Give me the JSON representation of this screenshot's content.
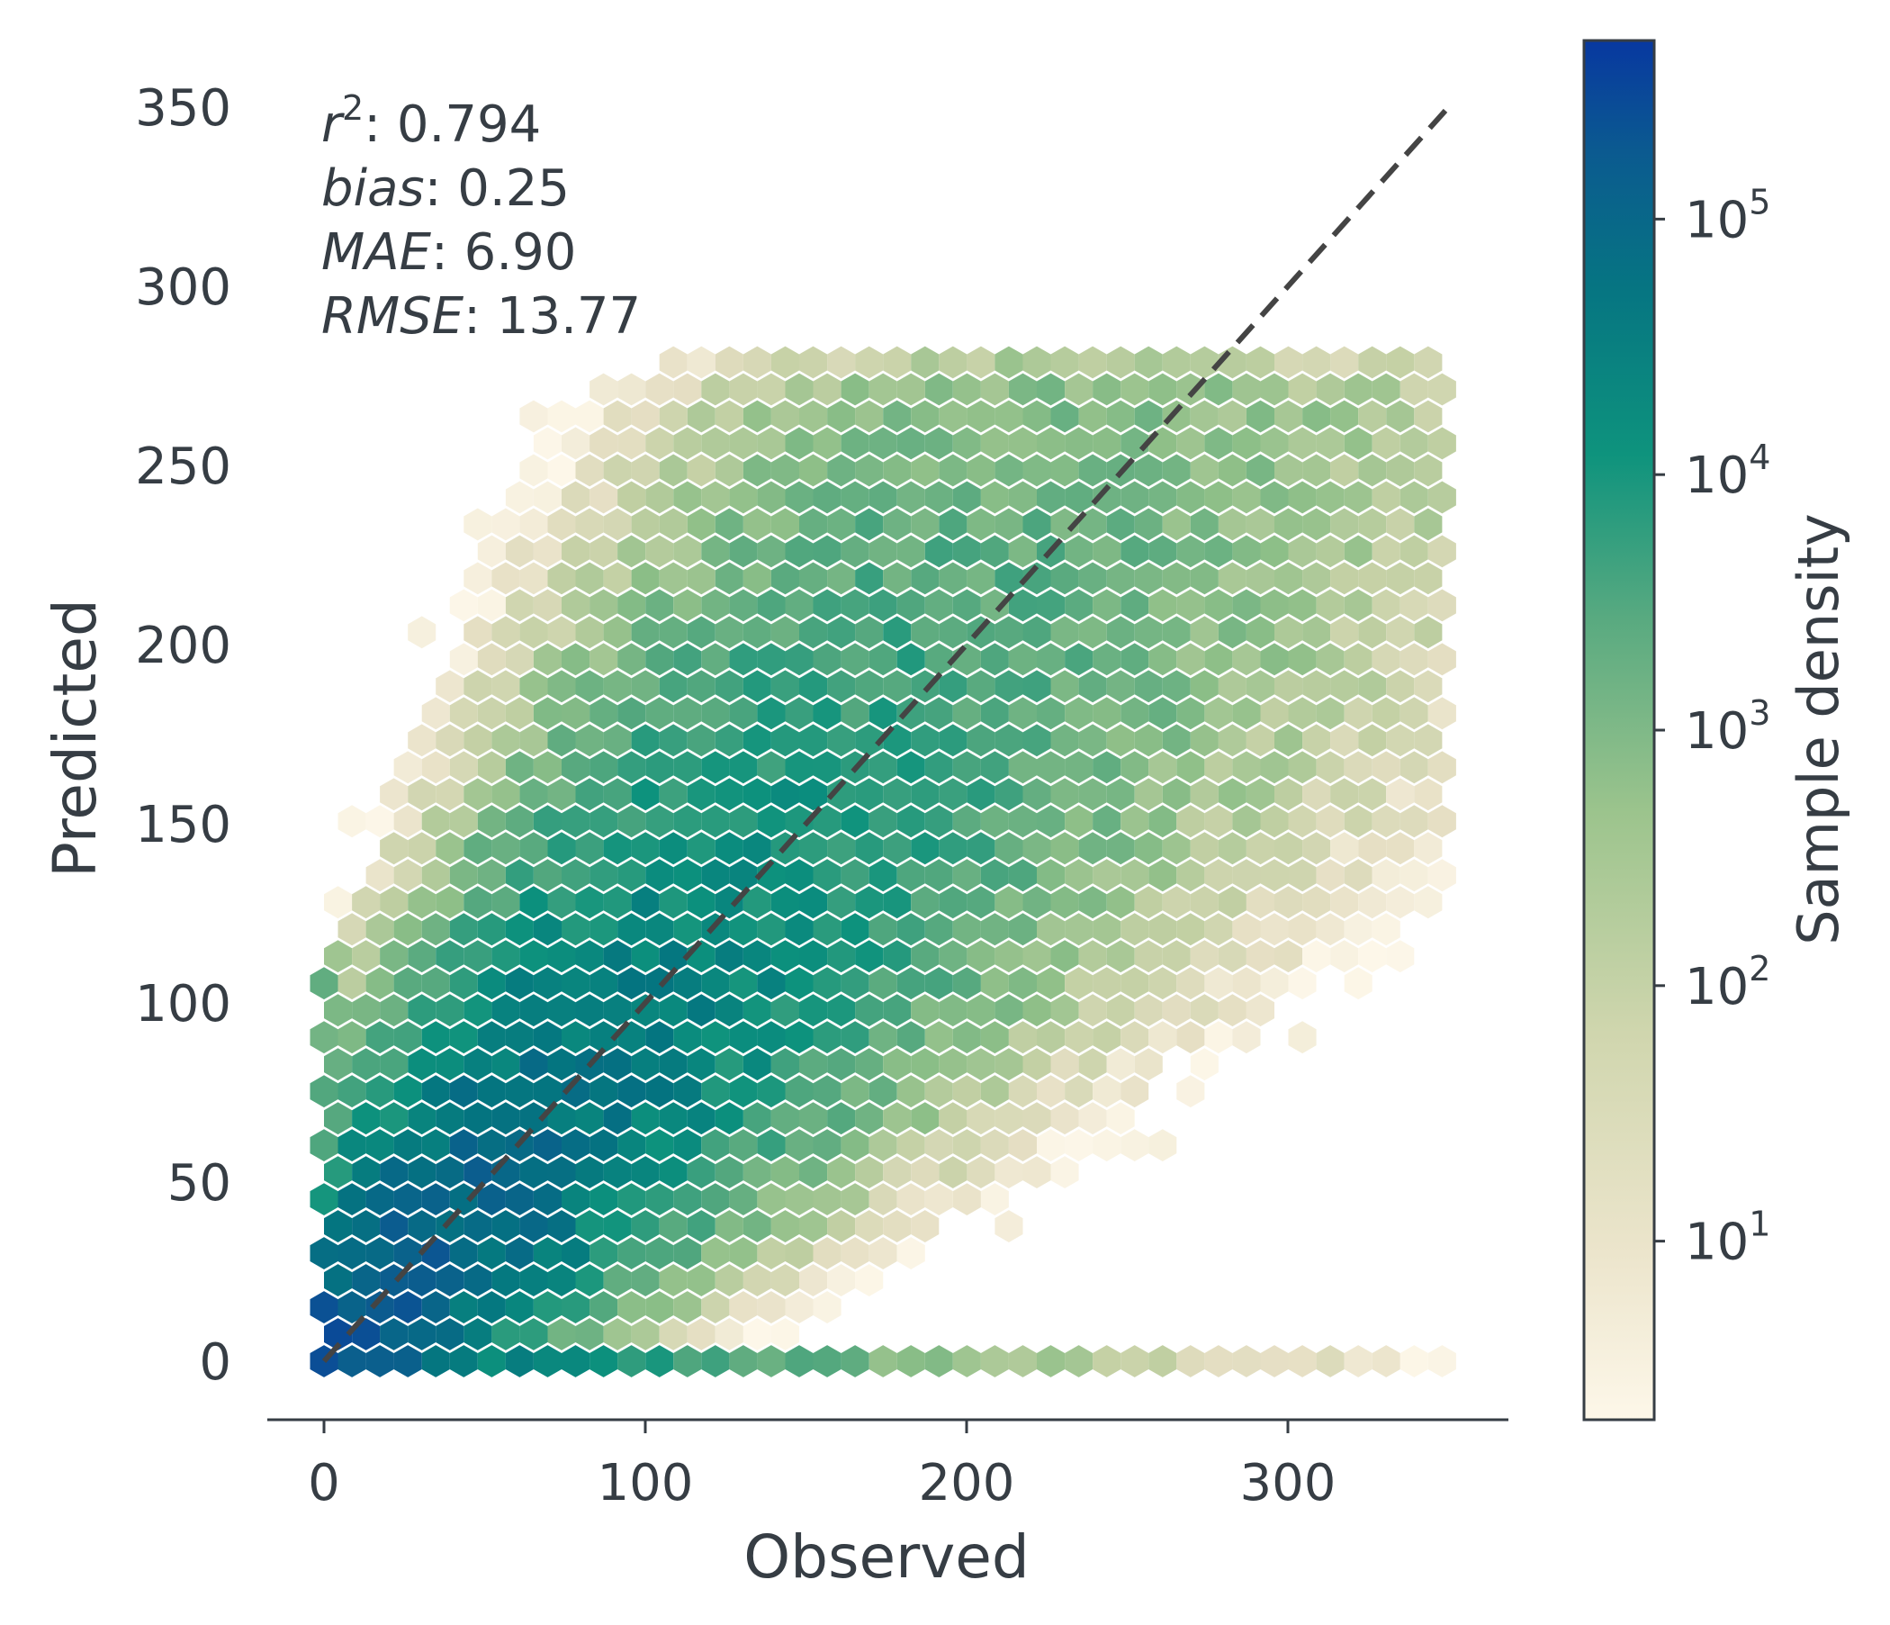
{
  "chart_data": {
    "type": "hexbin",
    "xlabel": "Observed",
    "ylabel": "Predicted",
    "xlim": [
      -18,
      370
    ],
    "ylim": [
      -16,
      355
    ],
    "xticks": [
      0,
      100,
      200,
      300
    ],
    "yticks": [
      0,
      50,
      100,
      150,
      200,
      250,
      300,
      350
    ],
    "reference_line": {
      "style": "dashed",
      "from": [
        0,
        0
      ],
      "to": [
        350,
        350
      ],
      "color": "#444444"
    },
    "stats": [
      {
        "label": "r",
        "sup": "2",
        "value": ": 0.794"
      },
      {
        "label": "bias",
        "sup": "",
        "value": ": 0.25"
      },
      {
        "label": "MAE",
        "sup": "",
        "value": ": 6.90"
      },
      {
        "label": "RMSE",
        "sup": "",
        "value": ": 13.77"
      }
    ],
    "colorbar": {
      "label": "Sample density",
      "scale": "log",
      "range": [
        2,
        500000
      ],
      "ticks": [
        {
          "value": 10,
          "base": "10",
          "exp": "1"
        },
        {
          "value": 100,
          "base": "10",
          "exp": "2"
        },
        {
          "value": 1000,
          "base": "10",
          "exp": "3"
        },
        {
          "value": 10000,
          "base": "10",
          "exp": "4"
        },
        {
          "value": 100000,
          "base": "10",
          "exp": "5"
        }
      ],
      "colormap": [
        "#fdf7e9",
        "#e6dfc4",
        "#c3d0a4",
        "#8ebf88",
        "#52a77e",
        "#0d927d",
        "#047480",
        "#0c5a90",
        "#0838a0"
      ]
    },
    "density_model": {
      "description": "hexbin counts approximated from the plotted density field",
      "max_x": 350,
      "max_y": 285
    }
  },
  "colors": {
    "axis": "#363d44",
    "text": "#363d44",
    "background": "#ffffff"
  }
}
